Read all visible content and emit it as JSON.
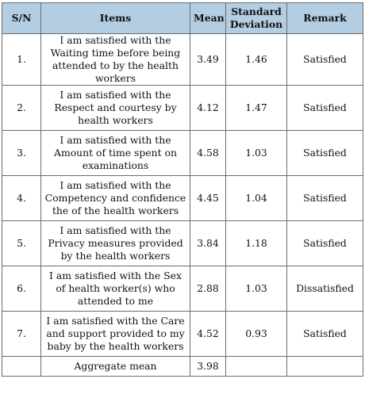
{
  "headers": [
    "S/N",
    "Items",
    "Mean",
    "Standard Deviation",
    "Remark"
  ],
  "rows": [
    {
      "sn": "1.",
      "item": "I am satisfied with the Waiting time before being attended to by the health workers",
      "mean": "3.49",
      "sd": "1.46",
      "remark": "Satisfied"
    },
    {
      "sn": "2.",
      "item": "I am satisfied with the Respect and courtesy by health workers",
      "mean": "4.12",
      "sd": "1.47",
      "remark": "Satisfied"
    },
    {
      "sn": "3.",
      "item": "I am satisfied with the Amount of time spent on examinations",
      "mean": "4.58",
      "sd": "1.03",
      "remark": "Satisfied"
    },
    {
      "sn": "4.",
      "item": "I am satisfied with the Competency and confidence the of the health workers",
      "mean": "4.45",
      "sd": "1.04",
      "remark": "Satisfied"
    },
    {
      "sn": "5.",
      "item": "I am satisfied with the Privacy measures provided by the health workers",
      "mean": "3.84",
      "sd": "1.18",
      "remark": "Satisfied"
    },
    {
      "sn": "6.",
      "item": "I am satisfied with the Sex of health worker(s) who attended to me",
      "mean": "2.88",
      "sd": "1.03",
      "remark": "Dissatisfied"
    },
    {
      "sn": "7.",
      "item": "I am satisfied with the Care and support provided to my baby by the health workers",
      "mean": "4.52",
      "sd": "0.93",
      "remark": "Satisfied"
    }
  ],
  "aggregate": {
    "sn": "",
    "label": "Aggregate mean",
    "mean": "3.98",
    "sd": "",
    "remark": ""
  }
}
